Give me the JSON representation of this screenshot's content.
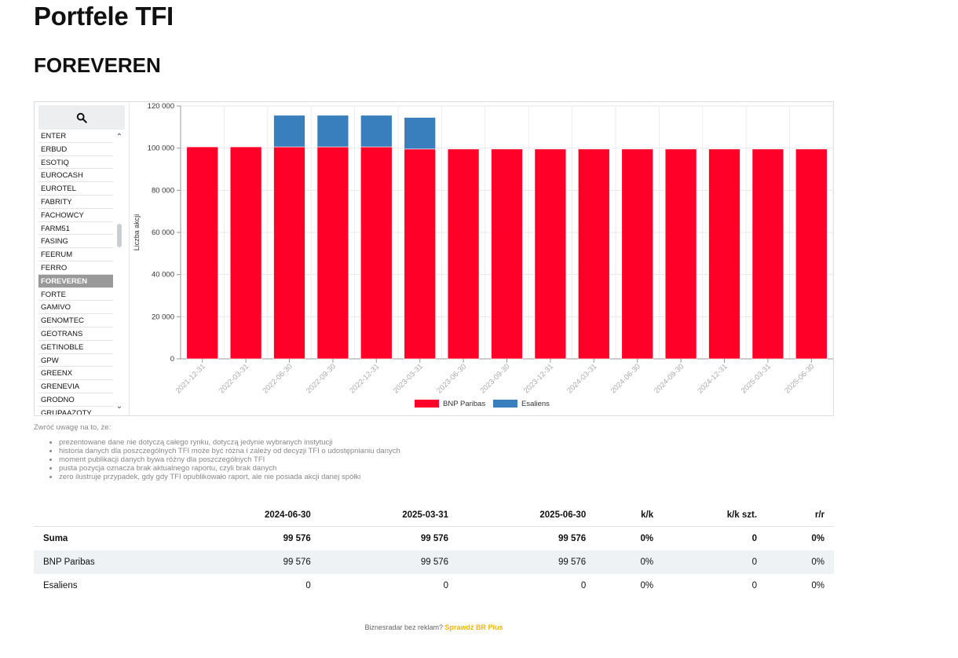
{
  "page": {
    "title": "Portfele TFI",
    "subtitle": "FOREVEREN"
  },
  "sidebar": {
    "search_icon": "search-icon",
    "items": [
      "ENTER",
      "ERBUD",
      "ESOTIQ",
      "EUROCASH",
      "EUROTEL",
      "FABRITY",
      "FACHOWCY",
      "FARM51",
      "FASING",
      "FEERUM",
      "FERRO",
      "FOREVEREN",
      "FORTE",
      "GAMIVO",
      "GENOMTEC",
      "GEOTRANS",
      "GETINOBLE",
      "GPW",
      "GREENX",
      "GRENEVIA",
      "GRODNO",
      "GRUPAAZOTY"
    ],
    "active": "FOREVEREN"
  },
  "chart_data": {
    "type": "bar",
    "stacked": true,
    "ylabel": "Liczba akcji",
    "ylim": [
      0,
      120000
    ],
    "yticks": [
      "0",
      "20 000",
      "40 000",
      "60 000",
      "80 000",
      "100 000",
      "120 000"
    ],
    "categories": [
      "2021-12-31",
      "2022-03-31",
      "2022-06-30",
      "2022-09-30",
      "2022-12-31",
      "2023-03-31",
      "2023-06-30",
      "2023-09-30",
      "2023-12-31",
      "2024-03-31",
      "2024-06-30",
      "2024-09-30",
      "2024-12-31",
      "2025-03-31",
      "2025-06-30"
    ],
    "series": [
      {
        "name": "BNP Paribas",
        "color": "#ff0028",
        "values": [
          100600,
          100600,
          100600,
          100600,
          100600,
          99576,
          99576,
          99576,
          99576,
          99576,
          99576,
          99576,
          99576,
          99576,
          99576
        ]
      },
      {
        "name": "Esaliens",
        "color": "#3a7fbd",
        "values": [
          0,
          0,
          15000,
          15000,
          15000,
          15000,
          0,
          0,
          0,
          0,
          0,
          0,
          0,
          0,
          0
        ]
      }
    ],
    "legend": "bottom-center",
    "grid": true
  },
  "notes": {
    "title": "Zwróć uwagę na to, że:",
    "items": [
      "prezentowane dane nie dotyczą całego rynku, dotyczą jedynie wybranych instytucji",
      "historia danych dla poszczególnych TFI może być różna i zależy od decyzji TFI o udostępnianiu danych",
      "moment publikacji danych bywa różny dla poszczególnych TFI",
      "pusta pozycja oznacza brak aktualnego raportu, czyli brak danych",
      "zero ilustruje przypadek, gdy gdy TFI opublikowało raport, ale nie posiada akcji danej spółki"
    ]
  },
  "table": {
    "headers": [
      "",
      "2024-06-30",
      "2025-03-31",
      "2025-06-30",
      "k/k",
      "k/k szt.",
      "r/r"
    ],
    "rows": [
      [
        "Suma",
        "99 576",
        "99 576",
        "99 576",
        "0%",
        "0",
        "0%"
      ],
      [
        "BNP Paribas",
        "99 576",
        "99 576",
        "99 576",
        "0%",
        "0",
        "0%"
      ],
      [
        "Esaliens",
        "0",
        "0",
        "0",
        "0%",
        "0",
        "0%"
      ]
    ]
  },
  "footer": {
    "text": "Biznesradar bez reklam?",
    "link": "Sprawdź BR Plus"
  }
}
